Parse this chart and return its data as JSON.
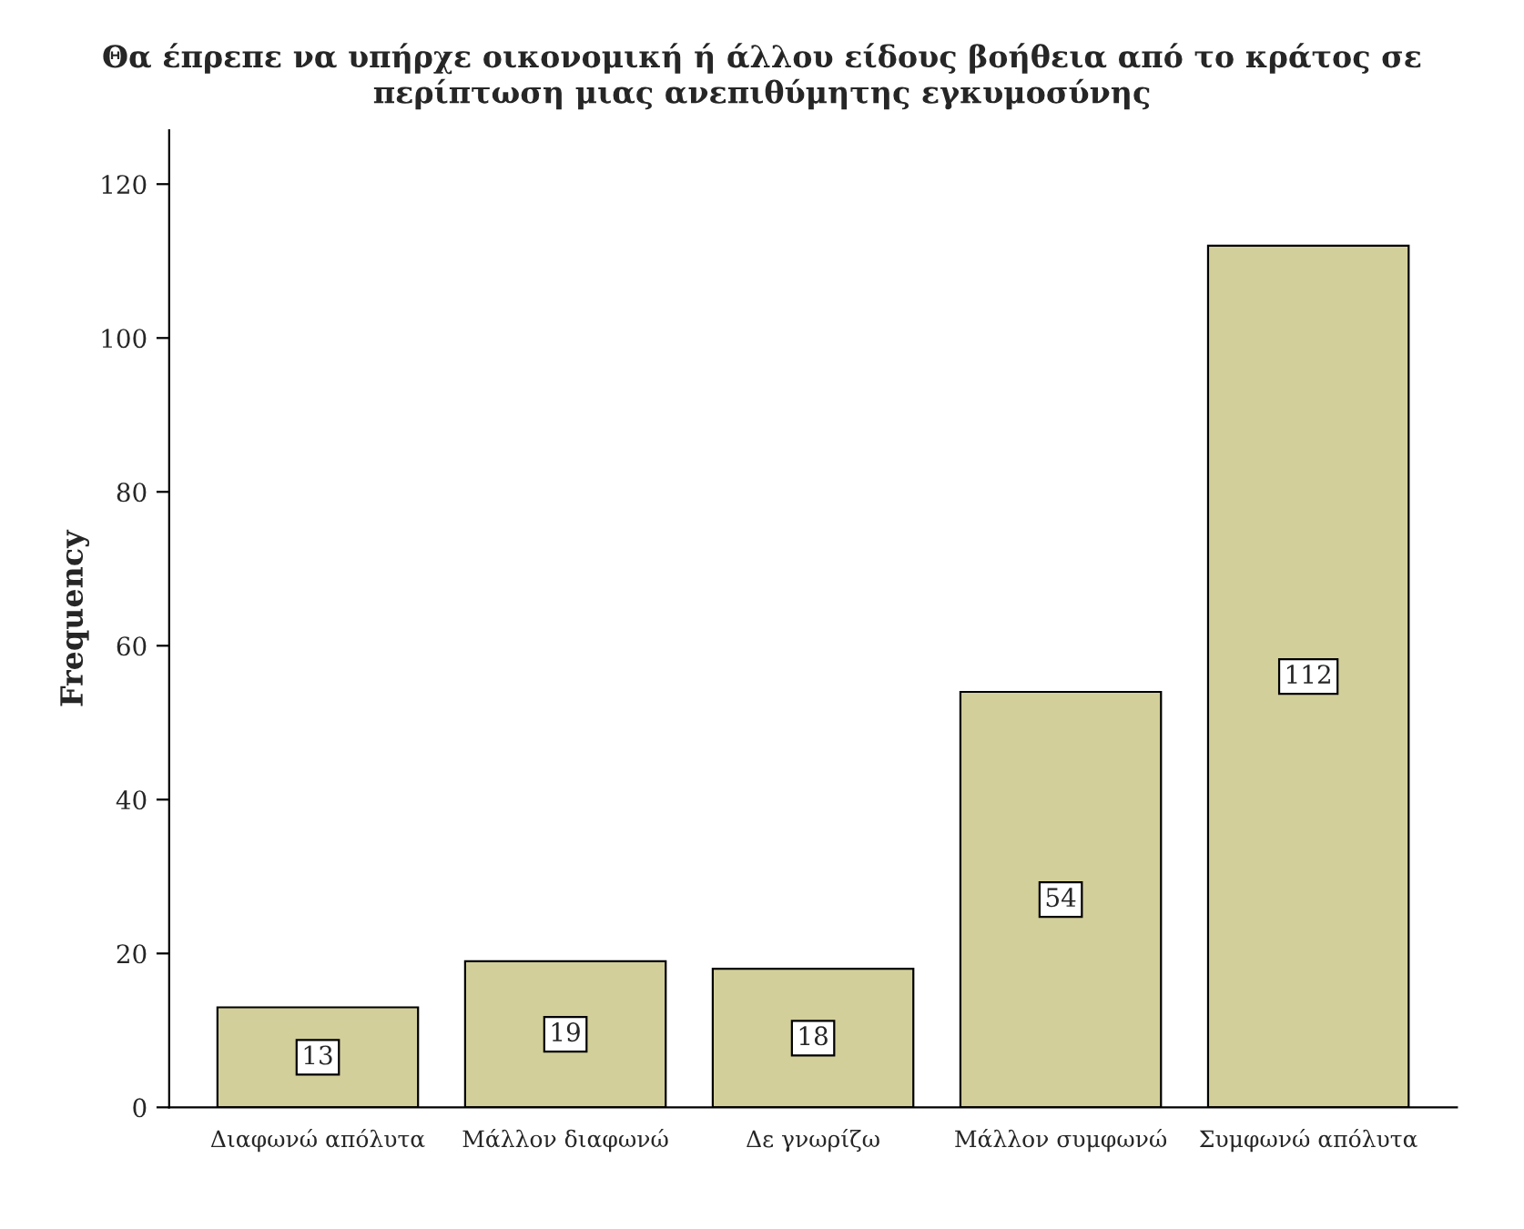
{
  "chart_data": {
    "type": "bar",
    "title": "Θα έπρεπε να υπήρχε οικονομική ή άλλου είδους βοήθεια από το κράτος σε περίπτωση μιας ανεπιθύμητης εγκυμοσύνης",
    "ylabel": "Frequency",
    "categories": [
      "Διαφωνώ απόλυτα",
      "Μάλλον διαφωνώ",
      "Δε γνωρίζω",
      "Μάλλον συμφωνώ",
      "Συμφωνώ απόλυτα"
    ],
    "values": [
      13,
      19,
      18,
      54,
      112
    ],
    "color": "#d3cf9a",
    "ylim": [
      0,
      127
    ],
    "yticks": [
      0,
      20,
      40,
      60,
      80,
      100,
      120
    ],
    "data_labels": true,
    "grid": false,
    "legend": false
  }
}
